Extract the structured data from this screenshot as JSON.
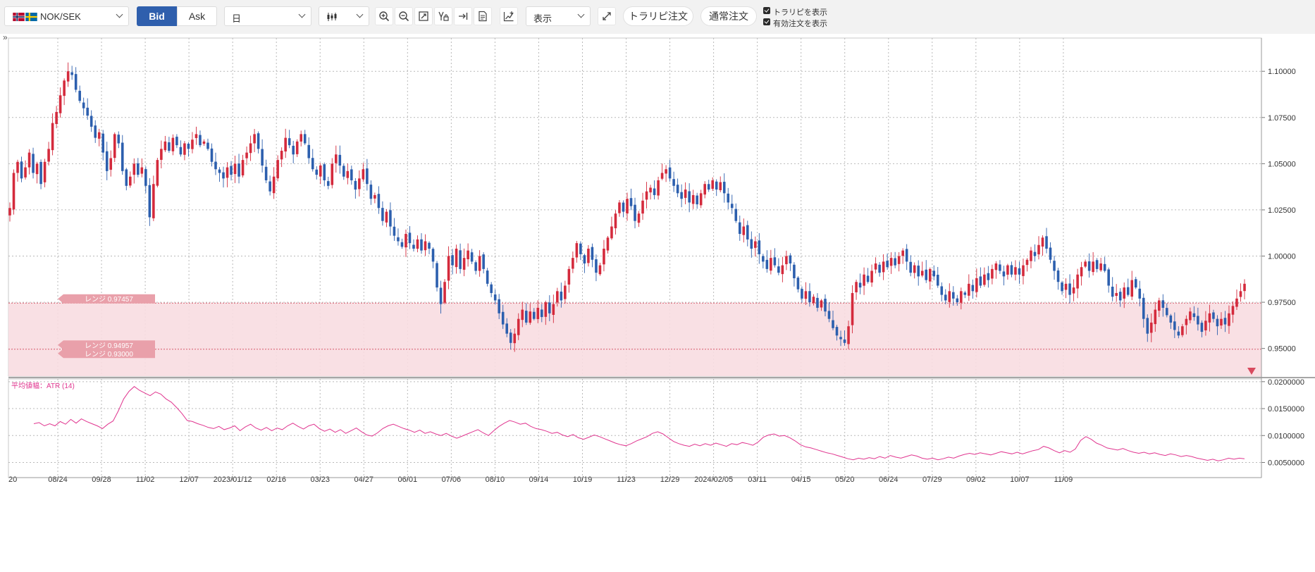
{
  "toolbar": {
    "symbol": "NOK/SEK",
    "bid_label": "Bid",
    "ask_label": "Ask",
    "timeframe": "日",
    "display_label": "表示",
    "trap_order_label": "トラリピ注文",
    "normal_order_label": "通常注文",
    "show_trap_label": "トラリピを表示",
    "show_orders_label": "有効注文を表示",
    "collapse_label": "»",
    "accent_color": "#2f5fad"
  },
  "chart_data": [
    {
      "type": "candlestick",
      "title": "",
      "y_ticks": [
        "1.10000",
        "1.07500",
        "1.05000",
        "1.02500",
        "1.00000",
        "0.97500",
        "0.95000"
      ],
      "x_ticks": [
        "20",
        "08/24",
        "09/28",
        "11/02",
        "12/07",
        "2023/01/12",
        "02/16",
        "03/23",
        "04/27",
        "06/01",
        "07/06",
        "08/10",
        "09/14",
        "10/19",
        "11/23",
        "12/29",
        "2024/02/05",
        "03/11",
        "04/15",
        "05/20",
        "06/24",
        "07/29",
        "09/02",
        "10/07",
        "11/09"
      ],
      "ylim": [
        0.935,
        1.118
      ],
      "grid": true,
      "up_color": "#d42a3c",
      "down_color": "#2c5fae",
      "close_path": [
        1.026,
        1.045,
        1.051,
        1.042,
        1.048,
        1.056,
        1.045,
        1.05,
        1.039,
        1.051,
        1.058,
        1.072,
        1.078,
        1.087,
        1.095,
        1.1,
        1.098,
        1.09,
        1.084,
        1.08,
        1.076,
        1.07,
        1.064,
        1.067,
        1.056,
        1.046,
        1.053,
        1.066,
        1.061,
        1.046,
        1.038,
        1.043,
        1.05,
        1.044,
        1.048,
        1.038,
        1.021,
        1.039,
        1.052,
        1.058,
        1.062,
        1.057,
        1.064,
        1.06,
        1.055,
        1.061,
        1.058,
        1.063,
        1.066,
        1.06,
        1.062,
        1.058,
        1.051,
        1.047,
        1.045,
        1.042,
        1.048,
        1.044,
        1.05,
        1.043,
        1.052,
        1.056,
        1.061,
        1.066,
        1.058,
        1.049,
        1.041,
        1.035,
        1.043,
        1.052,
        1.057,
        1.064,
        1.06,
        1.055,
        1.062,
        1.066,
        1.061,
        1.053,
        1.047,
        1.044,
        1.049,
        1.041,
        1.038,
        1.05,
        1.055,
        1.049,
        1.043,
        1.046,
        1.041,
        1.036,
        1.042,
        1.047,
        1.039,
        1.031,
        1.033,
        1.026,
        1.019,
        1.024,
        1.016,
        1.011,
        1.008,
        1.005,
        1.012,
        1.007,
        1.004,
        1.009,
        1.003,
        1.008,
        1.004,
        0.997,
        0.983,
        0.974,
        0.986,
        1.0,
        0.995,
        1.004,
        0.993,
        0.999,
        1.003,
        0.997,
        0.992,
        1.0,
        0.993,
        0.985,
        0.98,
        0.976,
        0.969,
        0.963,
        0.958,
        0.953,
        0.958,
        0.966,
        0.971,
        0.964,
        0.97,
        0.966,
        0.972,
        0.967,
        0.975,
        0.969,
        0.974,
        0.981,
        0.976,
        0.984,
        0.993,
        0.999,
        1.007,
        1.001,
        0.996,
        1.004,
        0.998,
        0.991,
        0.995,
        1.004,
        1.01,
        1.016,
        1.023,
        1.029,
        1.024,
        1.031,
        1.027,
        1.019,
        1.023,
        1.03,
        1.035,
        1.037,
        1.033,
        1.041,
        1.045,
        1.047,
        1.042,
        1.038,
        1.034,
        1.031,
        1.036,
        1.029,
        1.033,
        1.028,
        1.034,
        1.039,
        1.036,
        1.041,
        1.036,
        1.04,
        1.034,
        1.029,
        1.026,
        1.019,
        1.012,
        1.016,
        1.009,
        1.004,
        1.008,
        1.001,
        0.997,
        0.993,
        0.999,
        0.995,
        0.991,
        0.995,
        1.0,
        0.996,
        0.988,
        0.982,
        0.977,
        0.981,
        0.975,
        0.978,
        0.972,
        0.976,
        0.97,
        0.966,
        0.961,
        0.957,
        0.955,
        0.953,
        0.962,
        0.98,
        0.986,
        0.983,
        0.99,
        0.986,
        0.992,
        0.996,
        0.991,
        0.997,
        0.994,
        0.999,
        0.995,
        1.0,
        1.003,
        0.997,
        0.991,
        0.995,
        0.989,
        0.992,
        0.987,
        0.993,
        0.989,
        0.984,
        0.979,
        0.976,
        0.981,
        0.977,
        0.975,
        0.981,
        0.979,
        0.985,
        0.981,
        0.988,
        0.984,
        0.99,
        0.987,
        0.993,
        0.996,
        0.992,
        0.989,
        0.995,
        0.99,
        0.994,
        0.99,
        0.995,
        0.998,
        1.003,
        1.0,
        1.006,
        1.01,
        1.004,
        0.998,
        0.992,
        0.986,
        0.981,
        0.985,
        0.979,
        0.983,
        0.99,
        0.994,
        0.997,
        0.992,
        0.997,
        0.993,
        0.996,
        0.992,
        0.984,
        0.978,
        0.98,
        0.976,
        0.983,
        0.979,
        0.987,
        0.983,
        0.977,
        0.966,
        0.958,
        0.964,
        0.971,
        0.976,
        0.972,
        0.968,
        0.964,
        0.96,
        0.957,
        0.962,
        0.966,
        0.97,
        0.967,
        0.963,
        0.959,
        0.965,
        0.969,
        0.966,
        0.962,
        0.966,
        0.963,
        0.969,
        0.973,
        0.977,
        0.981,
        0.985
      ],
      "annotations": [
        {
          "label": "レンジ 0.97457",
          "price": 0.97457
        },
        {
          "label": "レンジ 0.94957",
          "price": 0.94957
        },
        {
          "label": "レンジ 0.93000",
          "price": 0.93
        }
      ]
    },
    {
      "type": "line",
      "title": "平均値幅：ATR (14)",
      "y_ticks": [
        "0.0200000",
        "0.0150000",
        "0.0100000",
        "0.0050000"
      ],
      "ylim": [
        0.0035,
        0.0205
      ],
      "line_color": "#e0358f",
      "series": [
        {
          "values": [
            0.0122,
            0.0124,
            0.0118,
            0.0122,
            0.0118,
            0.0126,
            0.0121,
            0.013,
            0.0123,
            0.0131,
            0.0126,
            0.0122,
            0.0118,
            0.0113,
            0.0121,
            0.0127,
            0.0146,
            0.0168,
            0.0182,
            0.0191,
            0.0184,
            0.0179,
            0.0174,
            0.0181,
            0.0177,
            0.0168,
            0.0162,
            0.0152,
            0.0141,
            0.0128,
            0.0126,
            0.0122,
            0.0119,
            0.0115,
            0.0113,
            0.0117,
            0.0111,
            0.0114,
            0.0118,
            0.0109,
            0.0116,
            0.0121,
            0.0114,
            0.011,
            0.0115,
            0.0109,
            0.0114,
            0.0111,
            0.0118,
            0.0123,
            0.0117,
            0.0112,
            0.0118,
            0.0121,
            0.0113,
            0.0108,
            0.0112,
            0.0106,
            0.0111,
            0.0104,
            0.0109,
            0.0114,
            0.0107,
            0.0101,
            0.0099,
            0.0105,
            0.0113,
            0.0118,
            0.0121,
            0.0117,
            0.0113,
            0.011,
            0.0106,
            0.011,
            0.0104,
            0.0107,
            0.0103,
            0.01,
            0.0104,
            0.0099,
            0.0095,
            0.0099,
            0.0103,
            0.0107,
            0.0111,
            0.0105,
            0.01,
            0.0109,
            0.0117,
            0.0123,
            0.0128,
            0.0125,
            0.0121,
            0.0123,
            0.0117,
            0.0113,
            0.0111,
            0.0108,
            0.0104,
            0.0106,
            0.0101,
            0.0098,
            0.0102,
            0.0096,
            0.0093,
            0.0097,
            0.0101,
            0.0098,
            0.0094,
            0.009,
            0.0086,
            0.0083,
            0.0081,
            0.0085,
            0.009,
            0.0094,
            0.0098,
            0.0104,
            0.0107,
            0.0103,
            0.0096,
            0.0089,
            0.0085,
            0.0082,
            0.008,
            0.0084,
            0.0081,
            0.0085,
            0.0082,
            0.0086,
            0.0083,
            0.008,
            0.0085,
            0.0083,
            0.0087,
            0.0085,
            0.0082,
            0.0088,
            0.0097,
            0.0101,
            0.0103,
            0.0099,
            0.01,
            0.0096,
            0.009,
            0.0083,
            0.0079,
            0.0077,
            0.0074,
            0.0071,
            0.0068,
            0.0066,
            0.0063,
            0.006,
            0.0057,
            0.0055,
            0.0058,
            0.0056,
            0.0059,
            0.0057,
            0.0061,
            0.0058,
            0.0063,
            0.006,
            0.0058,
            0.0061,
            0.0064,
            0.0062,
            0.0058,
            0.0056,
            0.0058,
            0.0055,
            0.0057,
            0.006,
            0.0058,
            0.0062,
            0.0065,
            0.0067,
            0.0065,
            0.0068,
            0.0066,
            0.0064,
            0.0067,
            0.007,
            0.0068,
            0.0066,
            0.0069,
            0.0066,
            0.0069,
            0.0072,
            0.0074,
            0.008,
            0.0077,
            0.0072,
            0.0068,
            0.0072,
            0.0069,
            0.0075,
            0.0091,
            0.0098,
            0.0093,
            0.0086,
            0.0082,
            0.0077,
            0.0075,
            0.0073,
            0.0076,
            0.0072,
            0.0069,
            0.0067,
            0.0069,
            0.0066,
            0.0068,
            0.0065,
            0.0063,
            0.0066,
            0.0064,
            0.0061,
            0.0063,
            0.0061,
            0.0058,
            0.0056,
            0.0054,
            0.0056,
            0.0053,
            0.0055,
            0.0058,
            0.0056,
            0.0058,
            0.0057
          ]
        }
      ]
    }
  ]
}
